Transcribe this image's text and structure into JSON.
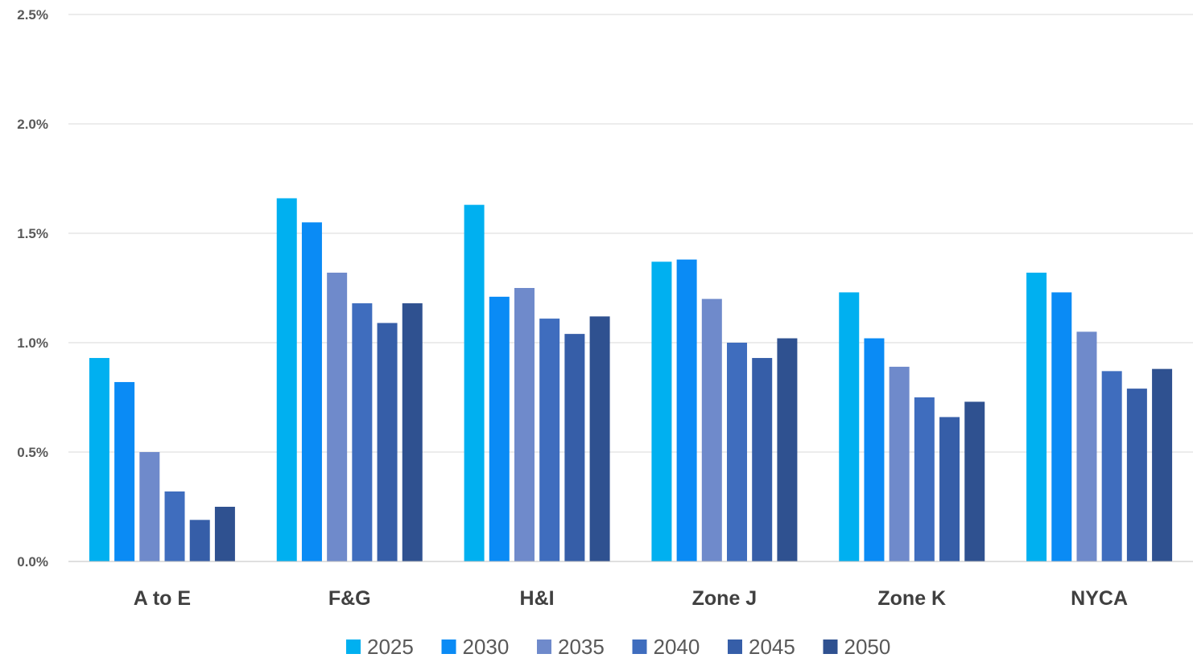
{
  "chart_data": {
    "type": "bar",
    "categories": [
      "A to E",
      "F&G",
      "H&I",
      "Zone J",
      "Zone K",
      "NYCA"
    ],
    "series": [
      {
        "name": "2025",
        "color": "#00B0F0",
        "values": [
          0.93,
          1.66,
          1.63,
          1.37,
          1.23,
          1.32
        ]
      },
      {
        "name": "2030",
        "color": "#0A8BF5",
        "values": [
          0.82,
          1.55,
          1.21,
          1.38,
          1.02,
          1.23
        ]
      },
      {
        "name": "2035",
        "color": "#6F8ACB",
        "values": [
          0.5,
          1.32,
          1.25,
          1.2,
          0.89,
          1.05
        ]
      },
      {
        "name": "2040",
        "color": "#3F6DBE",
        "values": [
          0.32,
          1.18,
          1.11,
          1.0,
          0.75,
          0.87
        ]
      },
      {
        "name": "2045",
        "color": "#365EA8",
        "values": [
          0.19,
          1.09,
          1.04,
          0.93,
          0.66,
          0.79
        ]
      },
      {
        "name": "2050",
        "color": "#2F5190",
        "values": [
          0.25,
          1.18,
          1.12,
          1.02,
          0.73,
          0.88
        ]
      }
    ],
    "y_ticks": [
      "0.0%",
      "0.5%",
      "1.0%",
      "1.5%",
      "2.0%",
      "2.5%"
    ],
    "ylim": [
      0,
      2.5
    ],
    "grid": true,
    "legend_position": "bottom",
    "title": "",
    "xlabel": "",
    "ylabel": ""
  }
}
